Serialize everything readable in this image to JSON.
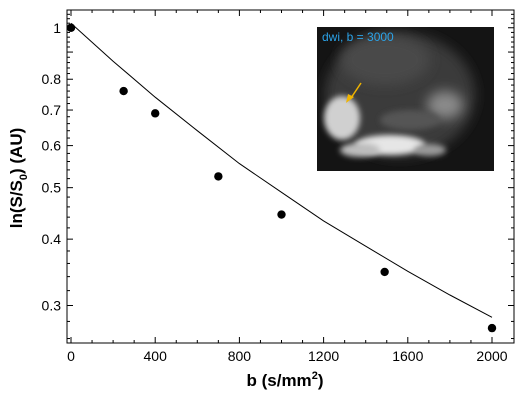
{
  "chart_data": {
    "type": "scatter",
    "xlabel": "b  (s/mm²)",
    "ylabel": "ln(S/S₀)  (AU)",
    "y_scale": "log",
    "xlim": [
      -10,
      2080
    ],
    "ylim": [
      0.255,
      1.08
    ],
    "x_ticks": [
      0,
      400,
      800,
      1200,
      1600,
      2000
    ],
    "x_tick_labels": [
      "0",
      "400",
      "800",
      "1200",
      "1600",
      "2000"
    ],
    "y_ticks": [
      0.3,
      0.4,
      0.5,
      0.6,
      0.7,
      0.8,
      1
    ],
    "y_tick_labels": [
      "0.3",
      "0.4",
      "0.5",
      "0.6",
      "0.7",
      "0.8",
      "1"
    ],
    "grid": false,
    "series": [
      {
        "marker": "filled-circle",
        "color": "#000000",
        "points": [
          {
            "x": 0,
            "y": 1.0
          },
          {
            "x": 250,
            "y": 0.76
          },
          {
            "x": 400,
            "y": 0.69
          },
          {
            "x": 700,
            "y": 0.525
          },
          {
            "x": 1000,
            "y": 0.445
          },
          {
            "x": 1490,
            "y": 0.347
          },
          {
            "x": 2000,
            "y": 0.272
          }
        ]
      },
      {
        "style": "fit-curve",
        "color": "#000000",
        "points": [
          {
            "x": 0,
            "y": 1.02
          },
          {
            "x": 200,
            "y": 0.865
          },
          {
            "x": 400,
            "y": 0.74
          },
          {
            "x": 600,
            "y": 0.64
          },
          {
            "x": 800,
            "y": 0.555
          },
          {
            "x": 1000,
            "y": 0.49
          },
          {
            "x": 1200,
            "y": 0.433
          },
          {
            "x": 1400,
            "y": 0.388
          },
          {
            "x": 1600,
            "y": 0.348
          },
          {
            "x": 1800,
            "y": 0.314
          },
          {
            "x": 2000,
            "y": 0.285
          }
        ]
      }
    ],
    "inset": {
      "label": "dwi, b = 3000",
      "label_color": "#2ba3e8",
      "arrow_color": "#f0b400",
      "content": "grayscale diffusion-weighted image"
    }
  }
}
